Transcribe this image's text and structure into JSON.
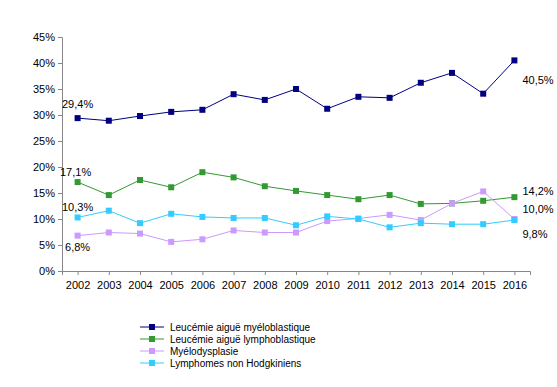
{
  "chart_data": {
    "type": "line",
    "categories": [
      "2002",
      "2003",
      "2004",
      "2005",
      "2006",
      "2007",
      "2008",
      "2009",
      "2010",
      "2011",
      "2012",
      "2013",
      "2014",
      "2015",
      "2016"
    ],
    "series": [
      {
        "name": "Leucémie aiguë myéloblastique",
        "color": "#000080",
        "marker": "square",
        "line_style": "solid",
        "values": [
          29.4,
          28.9,
          29.8,
          30.6,
          31.0,
          34.0,
          32.9,
          35.0,
          31.2,
          33.5,
          33.3,
          36.2,
          38.1,
          34.1,
          40.5
        ],
        "value_labels": [
          "29,4%",
          null,
          null,
          null,
          null,
          null,
          null,
          null,
          null,
          null,
          null,
          null,
          null,
          null,
          "40,5%"
        ]
      },
      {
        "name": "Leucémie aiguë lymphoblastique",
        "color": "#339933",
        "marker": "square",
        "line_style": "solid",
        "values": [
          17.1,
          14.6,
          17.5,
          16.1,
          19.0,
          18.0,
          16.3,
          15.4,
          14.6,
          13.8,
          14.6,
          12.9,
          13.0,
          13.5,
          14.2
        ],
        "value_labels": [
          "17,1%",
          null,
          null,
          null,
          null,
          null,
          null,
          null,
          null,
          null,
          null,
          null,
          null,
          null,
          "14,2%"
        ]
      },
      {
        "name": "Myélodysplasie",
        "color": "#cc99ff",
        "marker": "square",
        "line_style": "solid",
        "values": [
          6.8,
          7.4,
          7.2,
          5.6,
          6.1,
          7.8,
          7.4,
          7.4,
          9.6,
          10.1,
          10.8,
          9.8,
          13.0,
          15.3,
          10.0
        ],
        "value_labels": [
          "6,8%",
          null,
          null,
          null,
          null,
          null,
          null,
          null,
          null,
          null,
          null,
          null,
          null,
          null,
          "10,0%"
        ]
      },
      {
        "name": "Lymphomes non Hodgkiniens",
        "color": "#33ccff",
        "marker": "square",
        "line_style": "solid",
        "values": [
          10.3,
          11.6,
          9.2,
          11.0,
          10.4,
          10.2,
          10.2,
          8.8,
          10.5,
          10.0,
          8.4,
          9.2,
          9.0,
          9.0,
          9.8
        ],
        "value_labels": [
          "10,3%",
          null,
          null,
          null,
          null,
          null,
          null,
          null,
          null,
          null,
          null,
          null,
          null,
          null,
          "9,8%"
        ]
      }
    ],
    "ylim": [
      0,
      45
    ],
    "yticks": [
      {
        "value": 0,
        "label": "0%"
      },
      {
        "value": 5,
        "label": "5%"
      },
      {
        "value": 10,
        "label": "10%"
      },
      {
        "value": 15,
        "label": "15%"
      },
      {
        "value": 20,
        "label": "20%"
      },
      {
        "value": 25,
        "label": "25%"
      },
      {
        "value": 30,
        "label": "30%"
      },
      {
        "value": 35,
        "label": "35%"
      },
      {
        "value": 40,
        "label": "40%"
      },
      {
        "value": 45,
        "label": "45%"
      }
    ],
    "grid": false,
    "data_labels": true,
    "legend": "bottom"
  }
}
